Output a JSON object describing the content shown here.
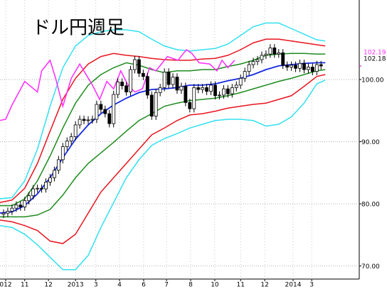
{
  "chart_data": {
    "type": "candlestick",
    "title": "ドル円週足",
    "x": [
      0,
      1,
      2,
      3,
      4,
      5,
      6,
      7,
      8,
      9,
      10,
      11,
      12,
      13,
      14,
      15,
      16,
      17,
      18,
      19,
      20,
      21,
      22,
      23,
      24,
      25,
      26,
      27,
      28,
      29,
      30,
      31,
      32,
      33,
      34,
      35,
      36,
      37,
      38,
      39,
      40,
      41,
      42,
      43,
      44,
      45,
      46,
      47,
      48,
      49,
      50,
      51,
      52,
      53,
      54,
      55,
      56,
      57,
      58,
      59,
      60,
      61,
      62,
      63,
      64,
      65,
      66,
      67,
      68,
      69,
      70,
      71,
      72,
      73,
      74,
      75
    ],
    "open": [
      78.3,
      78.5,
      78.8,
      79.3,
      79.8,
      79.5,
      80.5,
      81.3,
      82.4,
      82.5,
      82.4,
      83.5,
      84.2,
      85.4,
      87.1,
      89.2,
      90.1,
      90.8,
      92.7,
      93.6,
      93.4,
      93.5,
      93.6,
      96.0,
      95.2,
      94.5,
      92.9,
      97.6,
      99.6,
      99.0,
      98.0,
      101.6,
      103.2,
      101.0,
      100.5,
      97.5,
      94.1,
      97.9,
      98.7,
      101.2,
      99.2,
      100.4,
      98.3,
      98.9,
      96.3,
      95.3,
      98.7,
      98.4,
      98.7,
      98.1,
      99.1,
      97.4,
      97.5,
      98.5,
      97.7,
      98.7,
      99.1,
      100.2,
      101.3,
      102.4,
      102.9,
      103.2,
      103.9,
      104.1,
      105.1,
      104.1,
      104.3,
      102.3,
      102.0,
      102.3,
      101.8,
      102.6,
      101.6,
      102.0,
      101.3,
      102.4
    ],
    "high": [
      79.1,
      79.4,
      79.9,
      80.4,
      80.4,
      81.1,
      81.9,
      83.0,
      83.1,
      83.1,
      84.1,
      84.8,
      86.0,
      87.7,
      89.8,
      90.7,
      91.4,
      93.3,
      94.2,
      94.2,
      94.1,
      94.2,
      96.6,
      96.6,
      95.8,
      95.1,
      98.2,
      100.2,
      100.2,
      99.6,
      102.2,
      103.8,
      103.8,
      101.6,
      101.1,
      98.1,
      98.5,
      99.3,
      101.8,
      101.8,
      101.0,
      101.0,
      99.5,
      99.5,
      96.9,
      99.3,
      99.3,
      99.3,
      99.3,
      99.7,
      99.7,
      98.1,
      99.1,
      99.1,
      99.3,
      99.7,
      100.8,
      101.9,
      103.0,
      103.5,
      103.8,
      104.5,
      104.7,
      105.7,
      105.7,
      104.9,
      104.9,
      102.9,
      102.9,
      102.9,
      103.2,
      103.2,
      102.6,
      102.6,
      103.0,
      103.0
    ],
    "low": [
      77.7,
      77.9,
      78.2,
      78.7,
      78.9,
      78.9,
      79.9,
      80.7,
      81.8,
      81.8,
      81.8,
      82.9,
      83.6,
      84.8,
      86.5,
      88.6,
      89.5,
      90.2,
      92.1,
      92.8,
      92.8,
      92.9,
      93.0,
      94.6,
      93.9,
      92.3,
      92.3,
      97.0,
      98.4,
      97.4,
      97.4,
      101.0,
      100.4,
      99.9,
      96.9,
      93.5,
      93.5,
      97.3,
      98.1,
      98.6,
      98.6,
      97.7,
      97.7,
      95.7,
      94.7,
      94.7,
      97.8,
      97.8,
      97.5,
      97.5,
      96.8,
      96.8,
      96.9,
      97.1,
      97.1,
      98.1,
      98.5,
      99.6,
      100.7,
      101.8,
      102.3,
      102.6,
      103.3,
      103.5,
      103.5,
      103.5,
      101.7,
      101.4,
      101.4,
      101.2,
      101.2,
      101.0,
      101.0,
      100.7,
      100.7,
      101.6
    ],
    "close": [
      78.5,
      78.8,
      79.3,
      79.8,
      79.5,
      80.5,
      81.3,
      82.4,
      82.5,
      82.4,
      83.5,
      84.2,
      85.4,
      87.1,
      89.2,
      90.1,
      90.8,
      92.7,
      93.6,
      93.4,
      93.5,
      93.6,
      96.0,
      95.2,
      94.5,
      92.9,
      97.6,
      99.6,
      99.0,
      98.0,
      101.6,
      103.2,
      101.0,
      100.5,
      97.5,
      94.1,
      97.9,
      98.7,
      101.2,
      99.2,
      100.4,
      98.3,
      98.9,
      96.3,
      95.3,
      98.7,
      98.4,
      98.7,
      98.1,
      99.1,
      97.4,
      97.5,
      98.5,
      97.7,
      98.7,
      99.1,
      100.2,
      101.3,
      102.4,
      102.9,
      103.2,
      103.9,
      104.1,
      105.1,
      104.1,
      104.3,
      102.3,
      102.0,
      102.3,
      101.8,
      102.6,
      101.6,
      102.0,
      101.3,
      102.4,
      102.18
    ],
    "up_color": "#ffffff",
    "down_color": "#000000",
    "band_x": [
      -1,
      2,
      5,
      8,
      11,
      14,
      17,
      20,
      23,
      26,
      29,
      32,
      35,
      38,
      41,
      44,
      47,
      50,
      53,
      56,
      59,
      62,
      65,
      68,
      71,
      74,
      76
    ],
    "bands": [
      {
        "color": "#33e0f0",
        "values": [
          80.8,
          81.0,
          83.7,
          88.8,
          95.7,
          101.9,
          105.4,
          107.1,
          107.7,
          108.0,
          108.0,
          107.7,
          106.5,
          105.4,
          104.8,
          104.6,
          104.8,
          105.0,
          105.7,
          107.1,
          108.5,
          109.1,
          109.1,
          108.2,
          107.3,
          106.4,
          106.2
        ]
      },
      {
        "color": "#33e0f0",
        "values": [
          76.5,
          76.2,
          75.1,
          73.4,
          71.4,
          69.4,
          69.4,
          71.7,
          76.2,
          80.2,
          84.2,
          87.1,
          89.4,
          90.5,
          91.3,
          92.2,
          92.8,
          93.4,
          93.6,
          93.6,
          93.4,
          92.5,
          92.8,
          94.0,
          96.2,
          99.3,
          99.9
        ]
      },
      {
        "color": "#e8141e",
        "values": [
          80.2,
          80.6,
          82.5,
          86.5,
          91.7,
          96.8,
          100.2,
          102.5,
          103.7,
          104.2,
          103.9,
          103.7,
          103.4,
          103.2,
          103.1,
          103.1,
          103.3,
          103.4,
          103.9,
          104.8,
          105.9,
          106.5,
          106.5,
          106.2,
          105.9,
          105.6,
          105.4
        ]
      },
      {
        "color": "#e8141e",
        "values": [
          77.4,
          77.1,
          76.5,
          75.7,
          74.0,
          73.6,
          75.1,
          78.5,
          81.9,
          84.2,
          86.5,
          88.8,
          91.1,
          92.2,
          93.4,
          94.3,
          94.5,
          94.9,
          95.4,
          95.7,
          96.0,
          96.2,
          96.8,
          97.4,
          98.9,
          100.5,
          100.8
        ]
      },
      {
        "color": "#1e8c1e",
        "values": [
          79.7,
          79.7,
          80.8,
          83.7,
          87.7,
          92.2,
          96.2,
          99.1,
          100.8,
          101.9,
          102.7,
          102.3,
          101.6,
          101.1,
          101.4,
          101.4,
          101.6,
          101.6,
          102.1,
          102.5,
          103.1,
          103.9,
          104.1,
          104.2,
          104.2,
          104.1,
          104.1
        ]
      },
      {
        "color": "#1e8c1e",
        "values": [
          77.9,
          77.9,
          77.9,
          78.2,
          79.1,
          81.4,
          84.2,
          86.5,
          88.2,
          89.9,
          91.7,
          93.4,
          94.5,
          95.7,
          96.2,
          96.6,
          96.8,
          97.0,
          97.4,
          97.9,
          98.5,
          99.1,
          99.7,
          100.2,
          100.8,
          101.4,
          101.6
        ]
      },
      {
        "color": "#1428e0",
        "values": [
          78.5,
          78.7,
          79.7,
          81.6,
          84.2,
          87.4,
          90.4,
          92.7,
          94.5,
          95.9,
          97.0,
          97.9,
          98.4,
          98.5,
          98.7,
          99.1,
          99.1,
          99.3,
          99.8,
          100.2,
          100.8,
          101.6,
          102.2,
          102.4,
          102.6,
          102.7,
          102.7
        ]
      }
    ],
    "lagging": {
      "color": "#ff2cff",
      "x": [
        -1,
        0.5,
        2,
        5,
        8,
        9,
        11,
        12.3,
        14,
        16,
        18,
        21,
        22.7,
        24.4,
        26,
        27.7,
        29.4,
        31,
        32.8,
        34.5,
        36,
        38.7,
        41.2,
        43.2,
        44.5,
        46.2,
        48.7,
        50.4,
        51.6,
        53,
        54.6
      ],
      "values": [
        93.4,
        93.6,
        95.9,
        99.7,
        98.0,
        101.4,
        103.1,
        100.2,
        95.7,
        100.2,
        102.5,
        99.1,
        96.8,
        99.7,
        98.5,
        101.4,
        99.1,
        98.0,
        98.5,
        101.9,
        101.4,
        103.7,
        103.1,
        104.8,
        104.2,
        102.7,
        102.5,
        101.4,
        103.1,
        101.9,
        103.1
      ]
    },
    "price_labels": [
      {
        "value": 102.18,
        "label": "102.18",
        "color": "#000000"
      },
      {
        "value": 102.19,
        "label": "102.19",
        "color": "#ff2cff"
      }
    ],
    "xlim": [
      -0.84,
      84.03
    ],
    "ylim": [
      67.89,
      112.8
    ],
    "xticks": [
      {
        "value": 0.5,
        "label": "012"
      },
      {
        "value": 5,
        "label": "11"
      },
      {
        "value": 10.6,
        "label": "12"
      },
      {
        "value": 17,
        "label": "2013"
      },
      {
        "value": 21.8,
        "label": "3"
      },
      {
        "value": 27.4,
        "label": "4"
      },
      {
        "value": 33.1,
        "label": "6"
      },
      {
        "value": 38.5,
        "label": "7"
      },
      {
        "value": 44.2,
        "label": "8"
      },
      {
        "value": 49.9,
        "label": "10"
      },
      {
        "value": 56,
        "label": "11"
      },
      {
        "value": 61.7,
        "label": "12"
      },
      {
        "value": 68.4,
        "label": "2014"
      },
      {
        "value": 72.8,
        "label": "3"
      }
    ],
    "yticks": [
      {
        "value": 70,
        "label": "70.00"
      },
      {
        "value": 80,
        "label": "80.00"
      },
      {
        "value": 90,
        "label": "90.00"
      },
      {
        "value": 100,
        "label": "100.00"
      }
    ],
    "grid": true
  }
}
